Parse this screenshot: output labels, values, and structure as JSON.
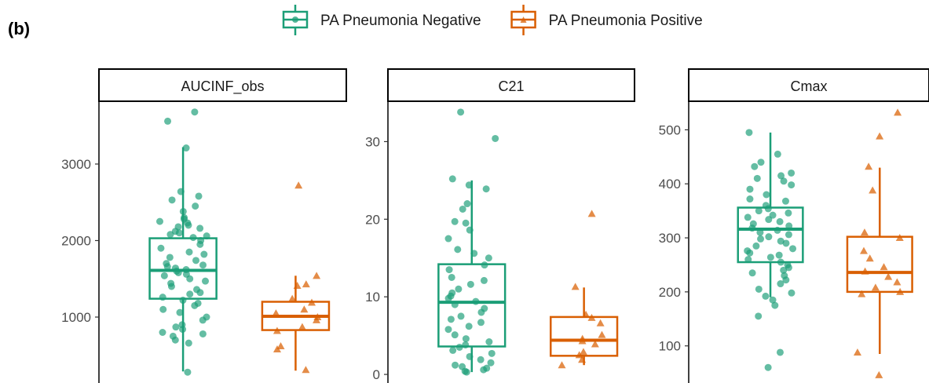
{
  "figure": {
    "panel_tag": "(b)",
    "legend": {
      "placement": "top",
      "items": [
        {
          "label": "PA Pneumonia Negative",
          "color": "#1b9e77",
          "shape": "circle"
        },
        {
          "label": "PA Pneumonia Positive",
          "color": "#d95f02",
          "shape": "triangle"
        }
      ]
    }
  },
  "chart_data": [
    {
      "type": "box",
      "title": "AUCINF_obs",
      "ylim": [
        200,
        3800
      ],
      "yticks": [
        1000,
        2000,
        3000
      ],
      "ytick_labels": [
        "1000",
        "2000",
        "3000"
      ],
      "groups": [
        {
          "name": "PA Pneumonia Negative",
          "box": {
            "min": 290,
            "q1": 1240,
            "median": 1610,
            "q3": 2030,
            "max": 3220
          },
          "points": [
            3560,
            3680,
            3210,
            2640,
            2530,
            2580,
            2450,
            2380,
            2300,
            2280,
            2250,
            2230,
            2200,
            2180,
            2160,
            2120,
            2100,
            2080,
            2060,
            2040,
            2000,
            1950,
            1900,
            1850,
            1820,
            1780,
            1740,
            1700,
            1680,
            1660,
            1640,
            1620,
            1600,
            1580,
            1560,
            1540,
            1500,
            1470,
            1440,
            1400,
            1360,
            1320,
            1300,
            1260,
            1220,
            1180,
            1150,
            1100,
            1060,
            1000,
            960,
            900,
            870,
            840,
            800,
            780,
            750,
            700,
            660,
            280
          ]
        },
        {
          "name": "PA Pneumonia Positive",
          "box": {
            "min": 300,
            "q1": 830,
            "median": 1010,
            "q3": 1200,
            "max": 1540
          },
          "points": [
            2720,
            1540,
            1430,
            1410,
            1240,
            1190,
            1100,
            1050,
            1000,
            960,
            870,
            820,
            620,
            580,
            310
          ]
        }
      ]
    },
    {
      "type": "box",
      "title": "C21",
      "ylim": [
        -0.5,
        35
      ],
      "yticks": [
        0,
        10,
        20,
        30
      ],
      "ytick_labels": [
        "0",
        "10",
        "20",
        "30"
      ],
      "groups": [
        {
          "name": "PA Pneumonia Negative",
          "box": {
            "min": 0.3,
            "q1": 3.6,
            "median": 9.3,
            "q3": 14.2,
            "max": 25.0
          },
          "points": [
            33.8,
            30.4,
            25.2,
            24.4,
            23.9,
            22.0,
            21.3,
            19.7,
            19.5,
            18.6,
            17.5,
            16.1,
            15.6,
            15.0,
            14.1,
            13.5,
            12.5,
            12.1,
            11.6,
            11.0,
            10.5,
            10.1,
            9.8,
            9.4,
            9.0,
            8.5,
            8.0,
            7.5,
            7.1,
            6.7,
            6.2,
            5.8,
            5.1,
            4.6,
            4.2,
            3.8,
            3.5,
            3.1,
            2.7,
            2.3,
            1.9,
            1.5,
            1.2,
            1.0,
            0.8,
            0.6,
            0.4,
            0.3
          ]
        },
        {
          "name": "PA Pneumonia Positive",
          "box": {
            "min": 1.2,
            "q1": 2.4,
            "median": 4.4,
            "q3": 7.4,
            "max": 11.2
          },
          "points": [
            20.7,
            11.3,
            7.7,
            7.3,
            6.6,
            5.1,
            4.6,
            4.3,
            3.9,
            2.9,
            2.5,
            1.9,
            1.2
          ]
        }
      ]
    },
    {
      "type": "box",
      "title": "Cmax",
      "ylim": [
        40,
        550
      ],
      "yticks": [
        100,
        200,
        300,
        400,
        500
      ],
      "ytick_labels": [
        "100",
        "200",
        "300",
        "400",
        "500"
      ],
      "groups": [
        {
          "name": "PA Pneumonia Negative",
          "box": {
            "min": 190,
            "q1": 255,
            "median": 316,
            "q3": 356,
            "max": 495
          },
          "points": [
            495,
            455,
            440,
            432,
            420,
            415,
            410,
            405,
            398,
            390,
            380,
            372,
            368,
            360,
            354,
            350,
            346,
            342,
            338,
            334,
            330,
            326,
            322,
            318,
            314,
            310,
            306,
            302,
            298,
            294,
            290,
            285,
            280,
            276,
            272,
            268,
            264,
            260,
            255,
            250,
            245,
            240,
            235,
            230,
            222,
            215,
            205,
            198,
            192,
            185,
            175,
            155,
            88,
            60
          ]
        },
        {
          "name": "PA Pneumonia Positive",
          "box": {
            "min": 85,
            "q1": 200,
            "median": 236,
            "q3": 302,
            "max": 430
          },
          "points": [
            532,
            488,
            432,
            388,
            310,
            300,
            276,
            262,
            246,
            238,
            228,
            218,
            208,
            200,
            196,
            88,
            46
          ]
        }
      ]
    }
  ]
}
